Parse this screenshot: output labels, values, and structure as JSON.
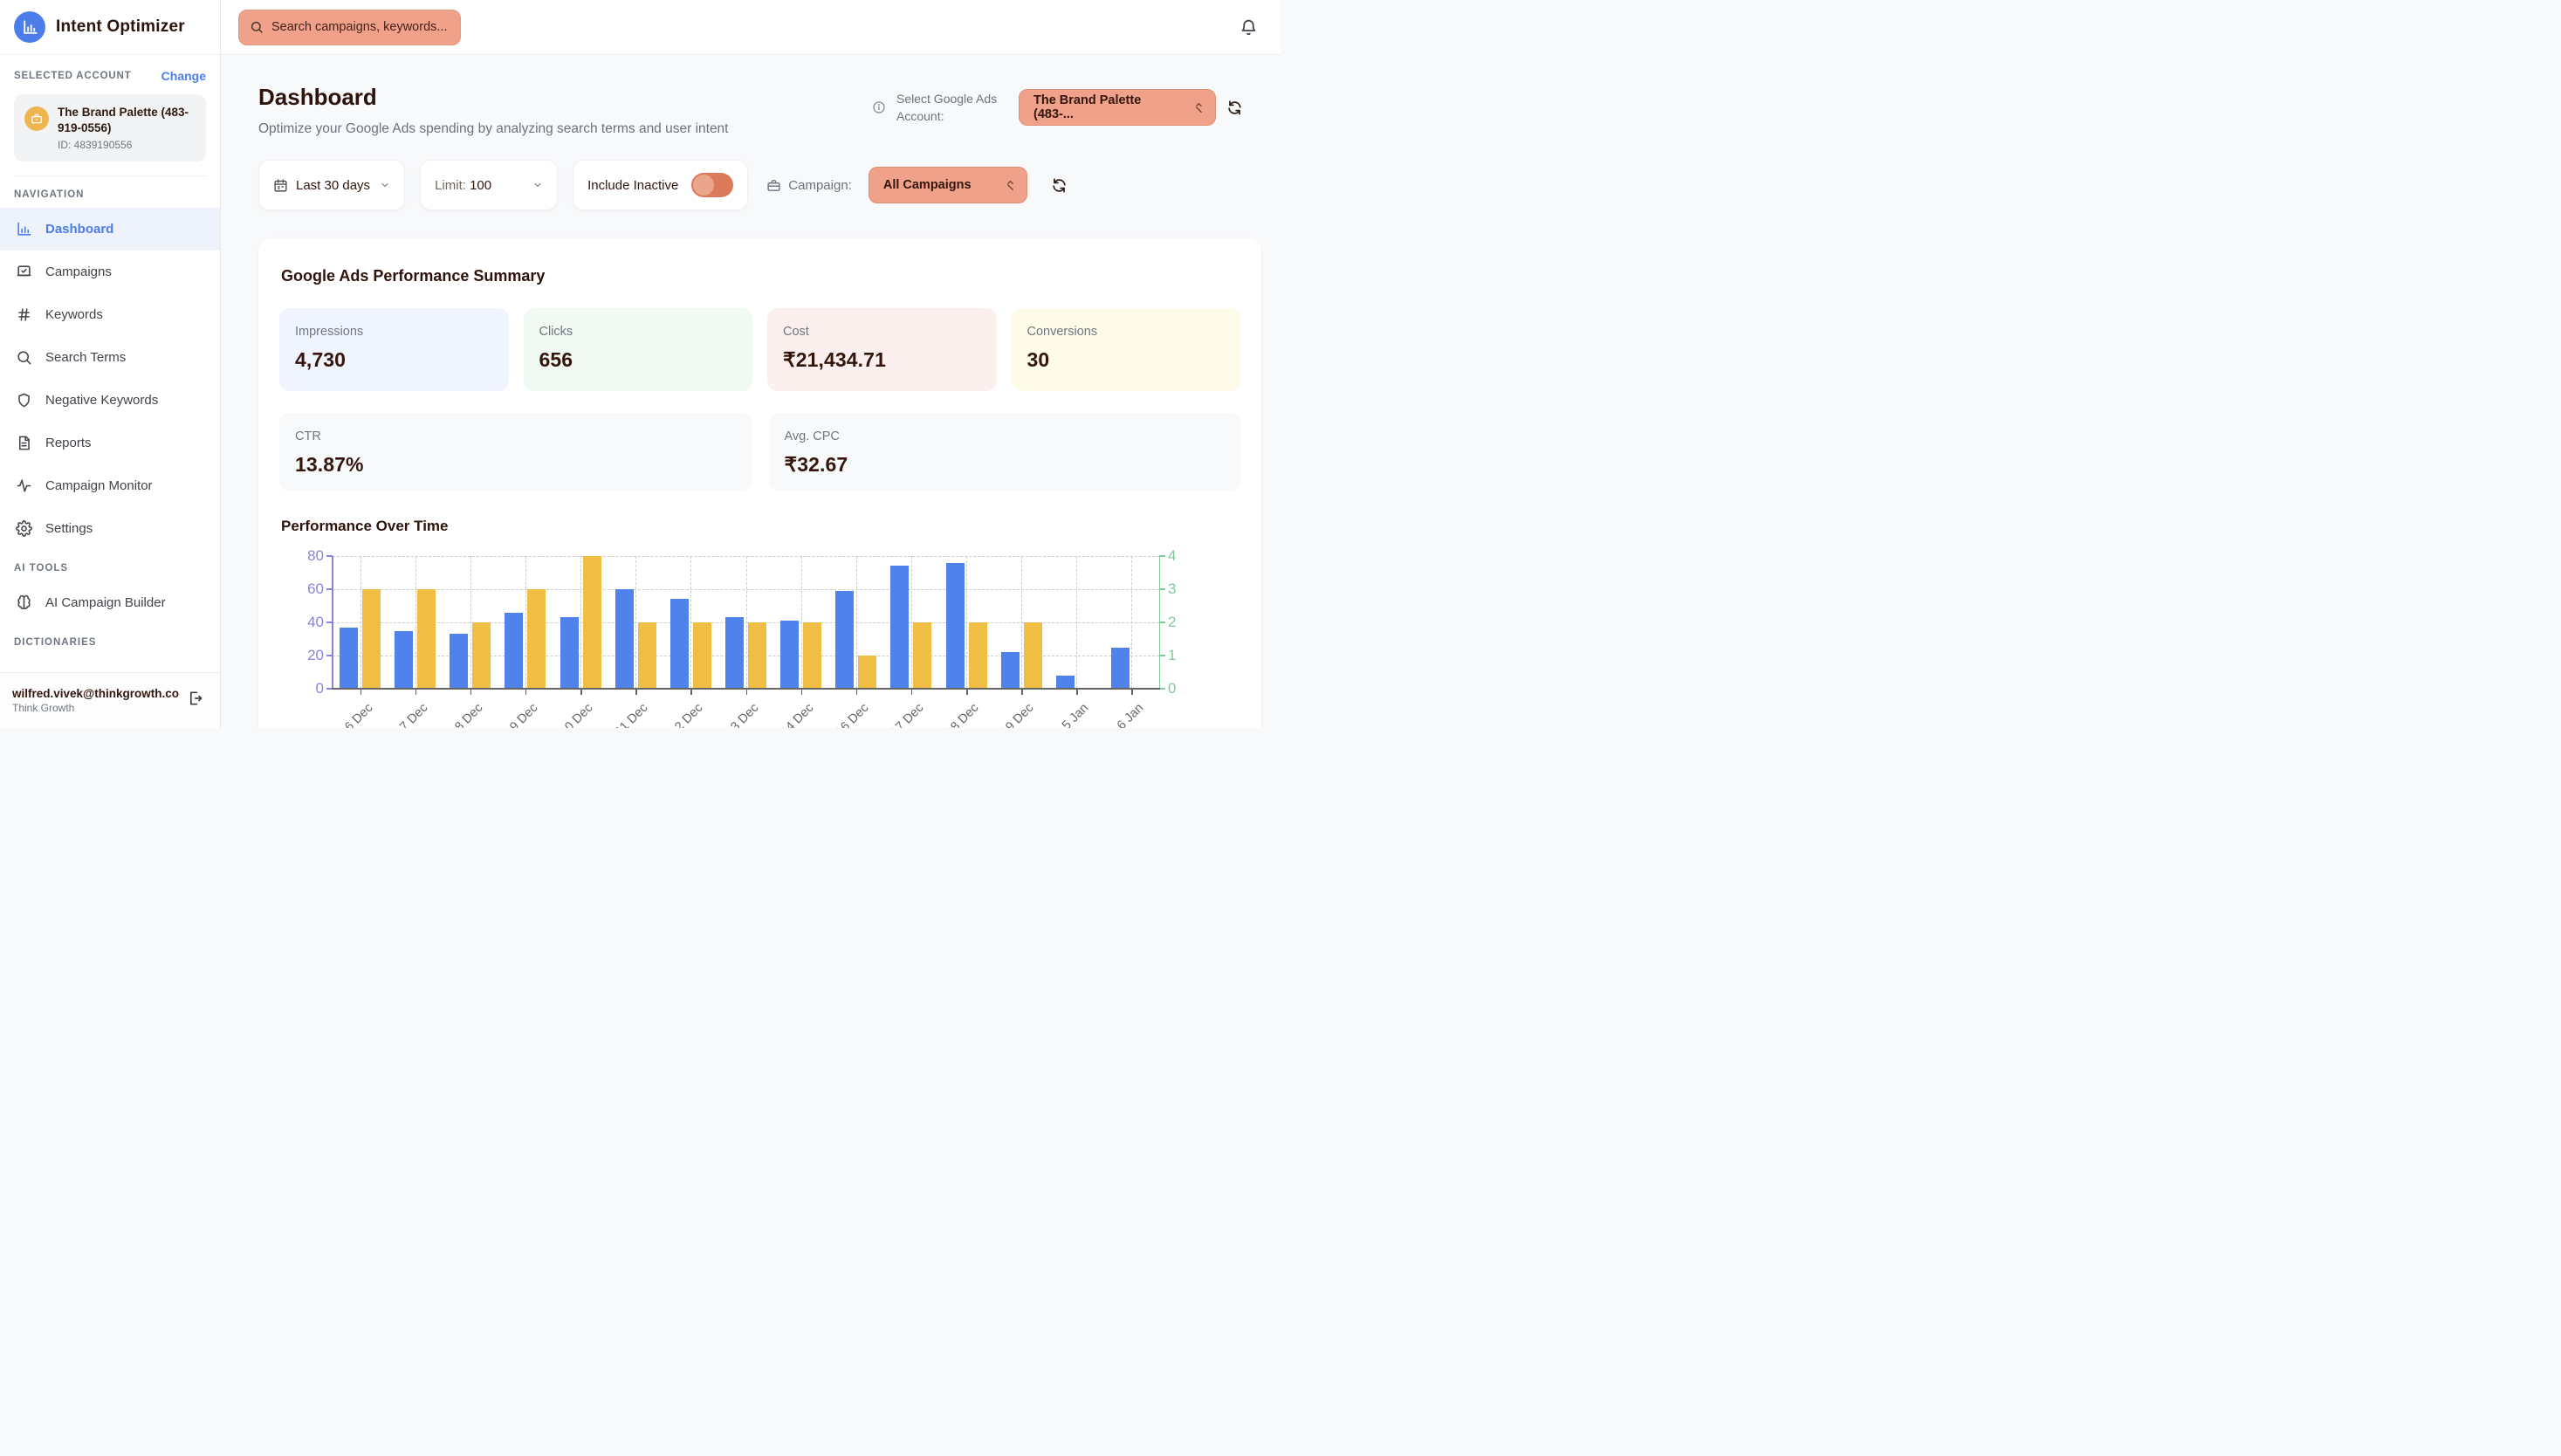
{
  "app": {
    "title": "Intent Optimizer"
  },
  "topbar": {
    "search_placeholder": "Search campaigns, keywords...",
    "accent_color": "#EFA189"
  },
  "sidebar": {
    "selected_account": {
      "section_label": "SELECTED ACCOUNT",
      "change_label": "Change",
      "name": "The Brand Palette (483-919-0556)",
      "id": "ID: 4839190556"
    },
    "nav_label": "NAVIGATION",
    "nav": [
      {
        "icon": "bar-chart",
        "label": "Dashboard",
        "active": true
      },
      {
        "icon": "campaigns",
        "label": "Campaigns",
        "active": false
      },
      {
        "icon": "hash",
        "label": "Keywords",
        "active": false
      },
      {
        "icon": "search",
        "label": "Search Terms",
        "active": false
      },
      {
        "icon": "shield",
        "label": "Negative Keywords",
        "active": false
      },
      {
        "icon": "document",
        "label": "Reports",
        "active": false
      },
      {
        "icon": "pulse",
        "label": "Campaign Monitor",
        "active": false
      },
      {
        "icon": "gear",
        "label": "Settings",
        "active": false
      }
    ],
    "ai_tools_label": "AI TOOLS",
    "ai_tools": [
      {
        "icon": "brain",
        "label": "AI Campaign Builder",
        "active": false
      }
    ],
    "dictionaries_label": "DICTIONARIES",
    "footer": {
      "email": "wilfred.vivek@thinkgrowth.co",
      "org": "Think Growth"
    }
  },
  "header": {
    "title": "Dashboard",
    "subtitle": "Optimize your Google Ads spending by analyzing search terms and user intent",
    "account_select_label": "Select Google Ads Account:",
    "account_select_value": "The Brand Palette (483-..."
  },
  "filters": {
    "date_range": "Last 30 days",
    "limit_label": "Limit:",
    "limit_value": "100",
    "include_inactive_label": "Include Inactive",
    "include_inactive_state": "off",
    "campaign_label": "Campaign:",
    "campaign_value": "All Campaigns",
    "toggle_track_color": "#DB7A5A",
    "toggle_knob_color": "#EBA58D"
  },
  "summary": {
    "title": "Google Ads Performance Summary",
    "metrics": [
      {
        "label": "Impressions",
        "value": "4,730",
        "bg": "#EFF4FE"
      },
      {
        "label": "Clicks",
        "value": "656",
        "bg": "#F0FAF2"
      },
      {
        "label": "Cost",
        "value": "₹21,434.71",
        "bg": "#FCF0EF"
      },
      {
        "label": "Conversions",
        "value": "30",
        "bg": "#FEFBE9"
      }
    ],
    "metrics_row2": [
      {
        "label": "CTR",
        "value": "13.87%",
        "bg": "#F8F9FA"
      },
      {
        "label": "Avg. CPC",
        "value": "₹32.67",
        "bg": "#F8F9FA"
      }
    ]
  },
  "chart_data": {
    "type": "bar",
    "title": "Performance Over Time",
    "categories": [
      "6 Dec",
      "7 Dec",
      "8 Dec",
      "9 Dec",
      "10 Dec",
      "11 Dec",
      "12 Dec",
      "13 Dec",
      "14 Dec",
      "16 Dec",
      "17 Dec",
      "18 Dec",
      "19 Dec",
      "5 Jan",
      "6 Jan"
    ],
    "series": [
      {
        "name": "Clicks",
        "axis": "left",
        "color": "#4F82EA",
        "values": [
          37,
          35,
          33,
          46,
          43,
          60,
          54,
          43,
          41,
          59,
          74,
          76,
          22,
          8,
          25
        ]
      },
      {
        "name": "Conversions",
        "axis": "right",
        "color": "#F0BD45",
        "values": [
          3,
          3,
          2,
          3,
          4,
          2,
          2,
          2,
          2,
          1,
          2,
          2,
          2,
          0,
          0
        ]
      }
    ],
    "left_axis": {
      "ticks": [
        0,
        20,
        40,
        60,
        80
      ],
      "max": 80,
      "color": "#8884D8"
    },
    "right_axis": {
      "ticks": [
        0,
        1,
        2,
        3,
        4
      ],
      "max": 4,
      "color": "#82CA9D"
    },
    "grid": "dashed",
    "legend_position": "none"
  }
}
